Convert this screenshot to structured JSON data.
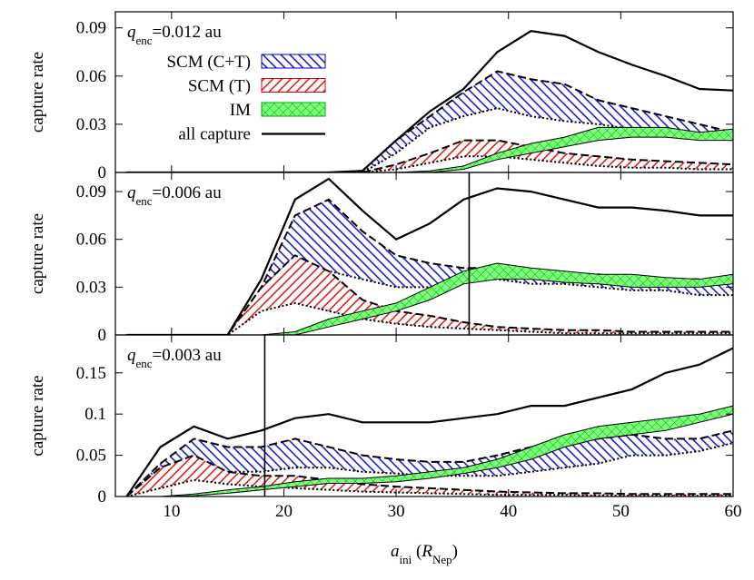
{
  "chart_data": [
    {
      "type": "line",
      "title": {
        "symbol": "q",
        "sub": "enc",
        "text": "=0.012 au"
      },
      "ylabel": "capture rate",
      "x": [
        6,
        9,
        12,
        15,
        18,
        21,
        24,
        27,
        30,
        33,
        36,
        39,
        42,
        45,
        48,
        51,
        54,
        57,
        60
      ],
      "xlim": [
        5,
        60
      ],
      "xticks": [
        10,
        20,
        30,
        40,
        50,
        60
      ],
      "ylim": [
        0,
        0.1
      ],
      "yticks": [
        0,
        0.03,
        0.06,
        0.09
      ],
      "legend": true,
      "series": [
        {
          "name": "SCM (C+T)",
          "color": "#0000cc",
          "pattern": "back",
          "edges": [
            "dashed",
            "dotted"
          ],
          "values": [
            0,
            0,
            0,
            0,
            0,
            0,
            0,
            0.001,
            0.02,
            0.035,
            0.05,
            0.063,
            0.058,
            0.055,
            0.045,
            0.04,
            0.035,
            0.03,
            0.025
          ],
          "lower": [
            0,
            0,
            0,
            0,
            0,
            0,
            0,
            0,
            0.012,
            0.028,
            0.035,
            0.04,
            0.035,
            0.032,
            0.03,
            0.027,
            0.025,
            0.022,
            0.02
          ]
        },
        {
          "name": "SCM (T)",
          "color": "#dd0000",
          "pattern": "forward",
          "edges": [
            "dashed",
            "dotted"
          ],
          "values": [
            0,
            0,
            0,
            0,
            0,
            0,
            0,
            0,
            0.005,
            0.012,
            0.02,
            0.02,
            0.016,
            0.012,
            0.01,
            0.008,
            0.007,
            0.006,
            0.005
          ],
          "lower": [
            0,
            0,
            0,
            0,
            0,
            0,
            0,
            0,
            0.002,
            0.006,
            0.01,
            0.01,
            0.008,
            0.006,
            0.004,
            0.003,
            0.003,
            0.002,
            0.002
          ]
        },
        {
          "name": "IM",
          "color": "#00aa00",
          "pattern": "cross",
          "edges": [
            "solid",
            "solid"
          ],
          "values": [
            0,
            0,
            0,
            0,
            0,
            0,
            0,
            0,
            0,
            0.001,
            0.004,
            0.012,
            0.018,
            0.022,
            0.028,
            0.028,
            0.028,
            0.025,
            0.027
          ],
          "lower": [
            0,
            0,
            0,
            0,
            0,
            0,
            0,
            0,
            0,
            0,
            0.002,
            0.008,
            0.012,
            0.016,
            0.02,
            0.022,
            0.022,
            0.02,
            0.02
          ]
        },
        {
          "name": "all capture",
          "color": "#000000",
          "values": [
            0,
            0,
            0,
            0,
            0,
            0,
            0,
            0.001,
            0.02,
            0.038,
            0.052,
            0.075,
            0.088,
            0.085,
            0.075,
            0.067,
            0.06,
            0.052,
            0.051
          ]
        }
      ]
    },
    {
      "type": "line",
      "title": {
        "symbol": "q",
        "sub": "enc",
        "text": "=0.006 au"
      },
      "ylabel": "capture rate",
      "x": [
        6,
        9,
        12,
        15,
        18,
        21,
        24,
        27,
        30,
        33,
        36,
        39,
        42,
        45,
        48,
        51,
        54,
        57,
        60
      ],
      "xlim": [
        5,
        60
      ],
      "xticks": [
        10,
        20,
        30,
        40,
        50,
        60
      ],
      "ylim": [
        0,
        0.102
      ],
      "yticks": [
        0,
        0.03,
        0.06,
        0.09
      ],
      "vlines": [
        36.5
      ],
      "series": [
        {
          "color": "#0000cc",
          "pattern": "back",
          "edges": [
            "dashed",
            "dotted"
          ],
          "values": [
            0,
            0,
            0,
            0,
            0.03,
            0.075,
            0.085,
            0.065,
            0.05,
            0.045,
            0.042,
            0.042,
            0.04,
            0.038,
            0.038,
            0.035,
            0.035,
            0.035,
            0.035
          ],
          "lower": [
            0,
            0,
            0,
            0,
            0.02,
            0.035,
            0.04,
            0.035,
            0.03,
            0.03,
            0.035,
            0.035,
            0.032,
            0.032,
            0.03,
            0.028,
            0.028,
            0.025,
            0.025
          ]
        },
        {
          "color": "#dd0000",
          "pattern": "forward",
          "edges": [
            "dashed",
            "dotted"
          ],
          "values": [
            0,
            0,
            0,
            0,
            0.03,
            0.05,
            0.04,
            0.022,
            0.015,
            0.012,
            0.008,
            0.005,
            0.004,
            0.003,
            0.003,
            0.002,
            0.002,
            0.002,
            0.002
          ],
          "lower": [
            0,
            0,
            0,
            0,
            0.015,
            0.02,
            0.015,
            0.01,
            0.007,
            0.005,
            0.004,
            0.003,
            0.002,
            0.001,
            0.001,
            0.001,
            0.001,
            0.001,
            0.001
          ]
        },
        {
          "color": "#00aa00",
          "pattern": "cross",
          "edges": [
            "solid",
            "solid"
          ],
          "values": [
            0,
            0,
            0,
            0,
            0,
            0.002,
            0.01,
            0.015,
            0.02,
            0.03,
            0.04,
            0.045,
            0.042,
            0.04,
            0.038,
            0.038,
            0.036,
            0.035,
            0.038
          ],
          "lower": [
            0,
            0,
            0,
            0,
            0,
            0,
            0.005,
            0.01,
            0.015,
            0.022,
            0.032,
            0.035,
            0.035,
            0.033,
            0.032,
            0.03,
            0.03,
            0.03,
            0.032
          ]
        },
        {
          "color": "#000000",
          "values": [
            0,
            0,
            0,
            0,
            0.035,
            0.085,
            0.098,
            0.078,
            0.06,
            0.07,
            0.085,
            0.092,
            0.09,
            0.085,
            0.08,
            0.08,
            0.078,
            0.075,
            0.075
          ]
        }
      ]
    },
    {
      "type": "line",
      "title": {
        "symbol": "q",
        "sub": "enc",
        "text": "=0.003 au"
      },
      "ylabel": "capture rate",
      "xlabel": {
        "symbol": "a",
        "sub": "ini",
        "open": " (",
        "unit": "R",
        "unit_sub": "Nep",
        "close": ")"
      },
      "x": [
        6,
        9,
        12,
        15,
        18,
        21,
        24,
        27,
        30,
        33,
        36,
        39,
        42,
        45,
        48,
        51,
        54,
        57,
        60
      ],
      "xlim": [
        5,
        60
      ],
      "xticks": [
        10,
        20,
        30,
        40,
        50,
        60
      ],
      "ylim": [
        0,
        0.196
      ],
      "yticks": [
        0,
        0.05,
        0.1,
        0.15
      ],
      "vlines": [
        18.3
      ],
      "series": [
        {
          "color": "#0000cc",
          "pattern": "back",
          "edges": [
            "dashed",
            "dotted"
          ],
          "values": [
            0,
            0.04,
            0.07,
            0.06,
            0.06,
            0.07,
            0.06,
            0.05,
            0.045,
            0.042,
            0.042,
            0.05,
            0.06,
            0.065,
            0.07,
            0.075,
            0.07,
            0.07,
            0.08
          ],
          "lower": [
            0,
            0.02,
            0.035,
            0.03,
            0.03,
            0.035,
            0.035,
            0.03,
            0.028,
            0.025,
            0.025,
            0.025,
            0.03,
            0.035,
            0.04,
            0.05,
            0.05,
            0.055,
            0.065
          ]
        },
        {
          "color": "#dd0000",
          "pattern": "forward",
          "edges": [
            "dashed",
            "dotted"
          ],
          "values": [
            0,
            0.035,
            0.05,
            0.03,
            0.025,
            0.025,
            0.02,
            0.015,
            0.012,
            0.01,
            0.008,
            0.006,
            0.005,
            0.004,
            0.004,
            0.003,
            0.003,
            0.003,
            0.003
          ],
          "lower": [
            0,
            0.01,
            0.02,
            0.015,
            0.012,
            0.01,
            0.008,
            0.006,
            0.005,
            0.004,
            0.003,
            0.002,
            0.002,
            0.002,
            0.001,
            0.001,
            0.001,
            0.001,
            0.001
          ]
        },
        {
          "color": "#00aa00",
          "pattern": "cross",
          "edges": [
            "solid",
            "solid"
          ],
          "values": [
            0,
            0,
            0.003,
            0.008,
            0.012,
            0.018,
            0.022,
            0.022,
            0.025,
            0.03,
            0.035,
            0.045,
            0.06,
            0.075,
            0.085,
            0.09,
            0.095,
            0.1,
            0.11
          ],
          "lower": [
            0,
            0,
            0.001,
            0.004,
            0.008,
            0.012,
            0.016,
            0.016,
            0.018,
            0.022,
            0.028,
            0.035,
            0.045,
            0.06,
            0.07,
            0.075,
            0.08,
            0.09,
            0.1
          ]
        },
        {
          "color": "#000000",
          "values": [
            0,
            0.06,
            0.085,
            0.07,
            0.08,
            0.095,
            0.1,
            0.09,
            0.09,
            0.09,
            0.095,
            0.1,
            0.11,
            0.11,
            0.12,
            0.13,
            0.15,
            0.16,
            0.18
          ]
        }
      ]
    }
  ]
}
